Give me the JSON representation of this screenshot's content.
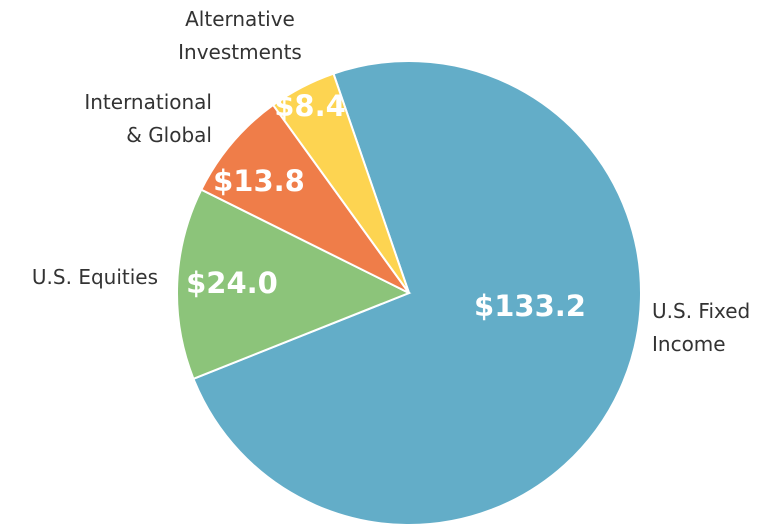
{
  "chart_data": {
    "type": "pie",
    "categories": [
      "U.S. Fixed\nIncome",
      "U.S. Equities",
      "International\n& Global",
      "Alternative\nInvestments"
    ],
    "values": [
      133.2,
      24.0,
      13.8,
      8.4
    ],
    "value_labels": [
      "$133.2",
      "$24.0",
      "$13.8",
      "$8.4"
    ],
    "colors": [
      "#63adc8",
      "#8cc47a",
      "#ef7d49",
      "#fdd451"
    ]
  }
}
